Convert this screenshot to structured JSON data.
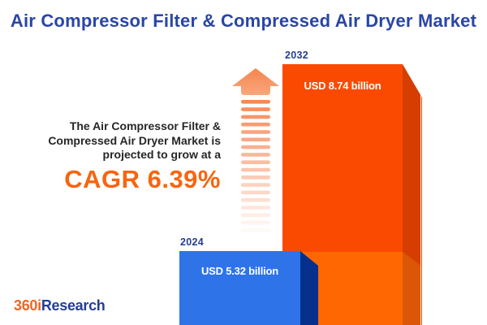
{
  "header": {
    "title": "Air Compressor Filter & Compressed Air Dryer Market"
  },
  "annotation": {
    "line1": "The Air Compressor Filter &",
    "line2": "Compressed Air Dryer Market is",
    "line3": "projected to grow at a",
    "cagr": "CAGR 6.39%"
  },
  "chart_data": {
    "type": "bar",
    "title": "Air Compressor Filter & Compressed Air Dryer Market",
    "categories": [
      "2024",
      "2032"
    ],
    "values": [
      5.32,
      8.74
    ],
    "unit": "USD billion",
    "cagr_percent": 6.39,
    "bars": [
      {
        "year": "2024",
        "value": 5.32,
        "value_label": "USD 5.32 billion"
      },
      {
        "year": "2032",
        "value": 8.74,
        "value_label": "USD 8.74 billion"
      }
    ],
    "annotation_text": "The Air Compressor Filter & Compressed Air Dryer Market is projected to grow at a CAGR 6.39%",
    "legend": "none",
    "axes": "none"
  },
  "icons": {
    "growth_arrow": "up-arrow-icon"
  },
  "logo": {
    "prefix": "360i",
    "suffix": "Research"
  },
  "colors": {
    "background": "#FFFFFF",
    "title_blue": "#2A46A4",
    "accent_orange": "#F7650F",
    "body_text": "#262626",
    "year_label_blue": "#243E94",
    "bar_2024_front": "#2E74E8",
    "bar_2024_side": "#05308C",
    "bar_2032_front_upper": "#FA4A02",
    "bar_2032_front_lower": "#FE6702",
    "bar_2032_side_upper": "#D63E01",
    "bar_2032_side_lower": "#DC5705",
    "arrow_orange": "#F78858",
    "value_label_text": "#FFFFFF",
    "logo_orange": "#F26522",
    "logo_blue": "#233E95"
  }
}
